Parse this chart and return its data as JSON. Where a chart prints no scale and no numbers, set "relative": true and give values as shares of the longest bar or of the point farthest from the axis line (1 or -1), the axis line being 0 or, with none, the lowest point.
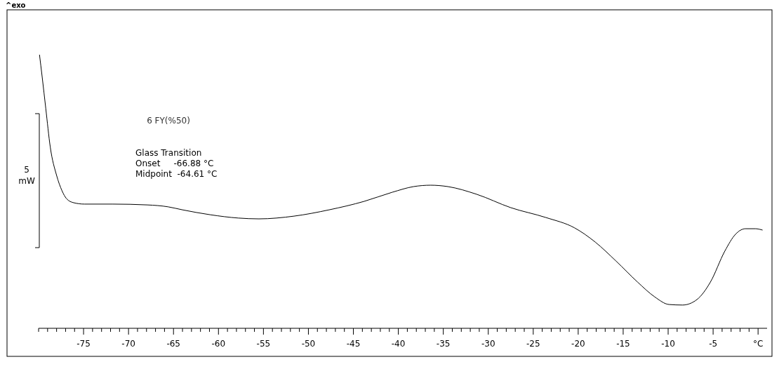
{
  "chart_data": {
    "type": "line",
    "title": "6 FY(%50)",
    "relative": true,
    "annotations": [
      "^exo",
      "Glass Transition",
      "Onset     -66.88 °C",
      "Midpoint  -64.61 °C",
      "5 mW"
    ],
    "xlim": [
      -80,
      1
    ],
    "xticks": [
      {
        "value": -80,
        "label": null
      },
      {
        "value": -79,
        "label": null
      },
      {
        "value": -78,
        "label": null
      },
      {
        "value": -77,
        "label": null
      },
      {
        "value": -76,
        "label": null
      },
      -75,
      {
        "value": -74,
        "label": null
      },
      {
        "value": -73,
        "label": null
      },
      {
        "value": -72,
        "label": null
      },
      {
        "value": -71,
        "label": null
      },
      -70,
      {
        "value": -69,
        "label": null
      },
      {
        "value": -68,
        "label": null
      },
      {
        "value": -67,
        "label": null
      },
      {
        "value": -66,
        "label": null
      },
      -65,
      {
        "value": -64,
        "label": null
      },
      {
        "value": -63,
        "label": null
      },
      {
        "value": -62,
        "label": null
      },
      {
        "value": -61,
        "label": null
      },
      -60,
      {
        "value": -59,
        "label": null
      },
      {
        "value": -58,
        "label": null
      },
      {
        "value": -57,
        "label": null
      },
      {
        "value": -56,
        "label": null
      },
      -55,
      {
        "value": -54,
        "label": null
      },
      {
        "value": -53,
        "label": null
      },
      {
        "value": -52,
        "label": null
      },
      {
        "value": -51,
        "label": null
      },
      -50,
      {
        "value": -49,
        "label": null
      },
      {
        "value": -48,
        "label": null
      },
      {
        "value": -47,
        "label": null
      },
      {
        "value": -46,
        "label": null
      },
      -45,
      {
        "value": -44,
        "label": null
      },
      {
        "value": -43,
        "label": null
      },
      {
        "value": -42,
        "label": null
      },
      {
        "value": -41,
        "label": null
      },
      -40,
      {
        "value": -39,
        "label": null
      },
      {
        "value": -38,
        "label": null
      },
      {
        "value": -37,
        "label": null
      },
      {
        "value": -36,
        "label": null
      },
      -35,
      {
        "value": -34,
        "label": null
      },
      {
        "value": -33,
        "label": null
      },
      {
        "value": -32,
        "label": null
      },
      {
        "value": -31,
        "label": null
      },
      -30,
      {
        "value": -29,
        "label": null
      },
      {
        "value": -28,
        "label": null
      },
      {
        "value": -27,
        "label": null
      },
      {
        "value": -26,
        "label": null
      },
      -25,
      {
        "value": -24,
        "label": null
      },
      {
        "value": -23,
        "label": null
      },
      {
        "value": -22,
        "label": null
      },
      {
        "value": -21,
        "label": null
      },
      -20,
      {
        "value": -19,
        "label": null
      },
      {
        "value": -18,
        "label": null
      },
      {
        "value": -17,
        "label": null
      },
      {
        "value": -16,
        "label": null
      },
      -15,
      {
        "value": -14,
        "label": null
      },
      {
        "value": -13,
        "label": null
      },
      {
        "value": -12,
        "label": null
      },
      {
        "value": -11,
        "label": null
      },
      -10,
      {
        "value": -9,
        "label": null
      },
      {
        "value": -8,
        "label": null
      },
      {
        "value": -7,
        "label": null
      },
      {
        "value": -6,
        "label": null
      },
      -5,
      {
        "value": -4,
        "label": null
      },
      {
        "value": -3,
        "label": null
      },
      {
        "value": -2,
        "label": null
      },
      {
        "value": -1,
        "label": null
      },
      {
        "value": 0,
        "label": "°C"
      }
    ],
    "x": [
      -79.9,
      -79.6,
      -79.2,
      -78.7,
      -78.0,
      -77.4,
      -76.9,
      -76.1,
      -74.9,
      -71.8,
      -67.9,
      -65.6,
      -64.0,
      -60.9,
      -57.8,
      -55.5,
      -51.6,
      -47.7,
      -43.8,
      -40.7,
      -38.3,
      -36.4,
      -34.5,
      -31.3,
      -27.5,
      -23.6,
      -20.4,
      -18.1,
      -15.8,
      -13.4,
      -11.5,
      -9.9,
      -8.4,
      -6.8,
      -5.3,
      -3.7,
      -2.5,
      -1.4,
      -0.3,
      0.5
    ],
    "series": [
      {
        "color": "#000000",
        "values": [
          1.0,
          0.918,
          0.803,
          0.662,
          0.559,
          0.503,
          0.474,
          0.459,
          0.454,
          0.454,
          0.451,
          0.444,
          0.433,
          0.415,
          0.403,
          0.4,
          0.41,
          0.433,
          0.464,
          0.497,
          0.518,
          0.523,
          0.518,
          0.49,
          0.441,
          0.405,
          0.367,
          0.315,
          0.246,
          0.169,
          0.115,
          0.087,
          0.085,
          0.105,
          0.169,
          0.282,
          0.344,
          0.364,
          0.364,
          0.359
        ]
      }
    ],
    "marker": "none",
    "line_style": "solid"
  }
}
